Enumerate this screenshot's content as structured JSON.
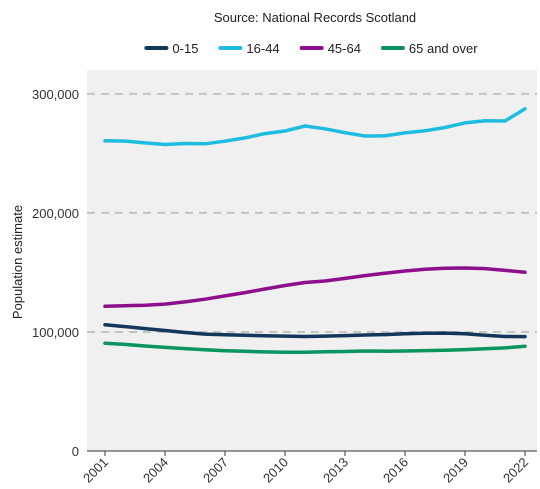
{
  "chart_data": {
    "type": "line",
    "subtitle": "Source: National Records Scotland",
    "ylabel": "Population estimate",
    "xlabel": "",
    "x": [
      2001,
      2002,
      2003,
      2004,
      2005,
      2006,
      2007,
      2008,
      2009,
      2010,
      2011,
      2012,
      2013,
      2014,
      2015,
      2016,
      2017,
      2018,
      2019,
      2020,
      2021,
      2022
    ],
    "x_tick_values": [
      2001,
      2004,
      2007,
      2010,
      2013,
      2016,
      2019,
      2022
    ],
    "x_tick_labels": [
      "2001",
      "2004",
      "2007",
      "2010",
      "2013",
      "2016",
      "2019",
      "2022"
    ],
    "xlim": [
      2000.1,
      2022.6
    ],
    "ylim": [
      0,
      320000
    ],
    "y_tick_values": [
      0,
      100000,
      200000,
      300000
    ],
    "y_tick_labels": [
      "0",
      "100,000",
      "200,000",
      "300,000"
    ],
    "grid": "horizontal dashed at major y ticks",
    "legend_position": "top",
    "plot_background": "#f0f0f0",
    "gridline_color": "#c4c4c4",
    "series": [
      {
        "name": "0-15",
        "color": "#12375a",
        "values": [
          106000,
          104500,
          102800,
          101200,
          99500,
          98200,
          97600,
          97200,
          96800,
          96500,
          96200,
          96500,
          96900,
          97400,
          97800,
          98400,
          98900,
          99000,
          98400,
          97200,
          96200,
          96100
        ]
      },
      {
        "name": "16-44",
        "color": "#1ebde0",
        "values": [
          260500,
          260300,
          258800,
          257400,
          258300,
          258000,
          260200,
          263000,
          266600,
          268800,
          273000,
          270600,
          267300,
          264600,
          264700,
          267200,
          268900,
          271700,
          275600,
          277400,
          277200,
          287400
        ]
      },
      {
        "name": "45-64",
        "color": "#8e0f8c",
        "values": [
          121500,
          122000,
          122400,
          123400,
          125200,
          127500,
          130300,
          133000,
          136100,
          139000,
          141500,
          142800,
          145000,
          147300,
          149300,
          151200,
          152700,
          153500,
          153700,
          153200,
          151700,
          150200
        ]
      },
      {
        "name": "65 and over",
        "color": "#0a9460",
        "values": [
          90500,
          89500,
          88200,
          87000,
          86000,
          85000,
          84200,
          83700,
          83200,
          82900,
          82900,
          83400,
          83600,
          84000,
          83800,
          84000,
          84300,
          84600,
          85200,
          85800,
          86600,
          87900
        ]
      }
    ]
  }
}
